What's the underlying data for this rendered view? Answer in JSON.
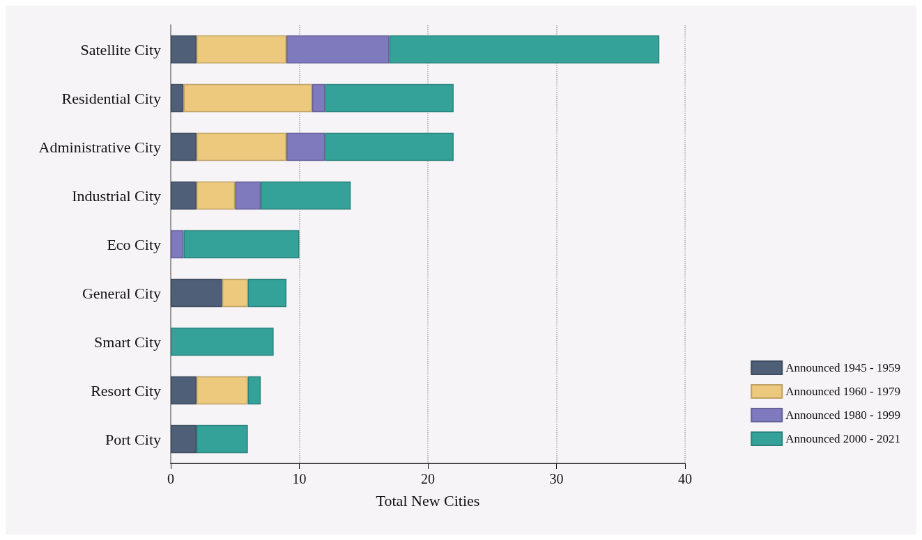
{
  "chart_data": {
    "type": "bar",
    "orientation": "horizontal",
    "stacked": true,
    "xlabel": "Total New Cities",
    "categories": [
      "Satellite City",
      "Residential City",
      "Administrative City",
      "Industrial City",
      "Eco City",
      "General City",
      "Smart City",
      "Resort City",
      "Port City"
    ],
    "series": [
      {
        "name": "Announced 1945 - 1959",
        "color": "#4f5f77",
        "values": [
          2,
          1,
          2,
          2,
          null,
          4,
          null,
          2,
          2
        ]
      },
      {
        "name": "Announced 1960 - 1979",
        "color": "#ecc97d",
        "values": [
          7,
          10,
          7,
          3,
          null,
          2,
          null,
          4,
          null
        ]
      },
      {
        "name": "Announced 1980 - 1999",
        "color": "#7f79bd",
        "values": [
          8,
          1,
          3,
          2,
          1,
          null,
          null,
          null,
          null
        ]
      },
      {
        "name": "Announced 2000 - 2021",
        "color": "#35a29a",
        "values": [
          21,
          10,
          10,
          7,
          9,
          3,
          8,
          1,
          4
        ]
      }
    ],
    "xlim": [
      0,
      40
    ],
    "xticks": [
      0,
      10,
      20,
      30,
      40
    ],
    "grid": "x",
    "legend": "bottom right"
  }
}
